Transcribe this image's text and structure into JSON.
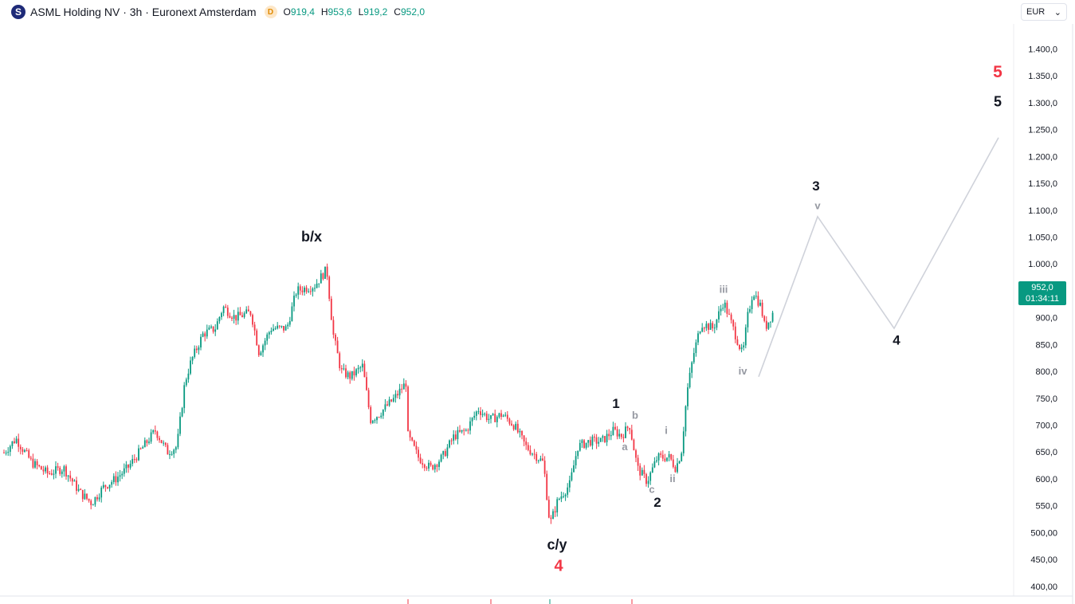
{
  "header": {
    "logo_letter": "S",
    "title": "ASML Holding NV · 3h · Euronext Amsterdam",
    "badge": "D",
    "ohlc": [
      {
        "k": "O",
        "v": "919,4"
      },
      {
        "k": "H",
        "v": "953,6"
      },
      {
        "k": "L",
        "v": "919,2"
      },
      {
        "k": "C",
        "v": "952,0"
      }
    ]
  },
  "currency": {
    "value": "EUR",
    "arrow": "⌄"
  },
  "colors": {
    "up": "#089981",
    "down": "#f23645",
    "path": "#cfd2da",
    "red_label": "#f23645"
  },
  "last_price": {
    "price": "952,0",
    "countdown": "01:34:11"
  },
  "chart_data": {
    "type": "candlestick",
    "y_range": [
      380,
      1420
    ],
    "y_ticks": [
      {
        "v": 1400,
        "label": "1.400,0"
      },
      {
        "v": 1350,
        "label": "1.350,0"
      },
      {
        "v": 1300,
        "label": "1.300,0"
      },
      {
        "v": 1250,
        "label": "1.250,0"
      },
      {
        "v": 1200,
        "label": "1.200,0"
      },
      {
        "v": 1150,
        "label": "1.150,0"
      },
      {
        "v": 1100,
        "label": "1.100,0"
      },
      {
        "v": 1050,
        "label": "1.050,0"
      },
      {
        "v": 1000,
        "label": "1.000,0"
      },
      {
        "v": 900,
        "label": "900,0"
      },
      {
        "v": 850,
        "label": "850,0"
      },
      {
        "v": 800,
        "label": "800,0"
      },
      {
        "v": 750,
        "label": "750,0"
      },
      {
        "v": 700,
        "label": "700,0"
      },
      {
        "v": 650,
        "label": "650,0"
      },
      {
        "v": 600,
        "label": "600,0"
      },
      {
        "v": 550,
        "label": "550,0"
      },
      {
        "v": 500,
        "label": "500,00"
      },
      {
        "v": 450,
        "label": "450,00"
      },
      {
        "v": 400,
        "label": "400,00"
      }
    ],
    "price_path": [
      [
        0,
        640
      ],
      [
        20,
        675
      ],
      [
        40,
        630
      ],
      [
        60,
        610
      ],
      [
        80,
        620
      ],
      [
        100,
        575
      ],
      [
        115,
        555
      ],
      [
        130,
        585
      ],
      [
        145,
        600
      ],
      [
        160,
        620
      ],
      [
        175,
        650
      ],
      [
        195,
        690
      ],
      [
        210,
        650
      ],
      [
        222,
        660
      ],
      [
        232,
        780
      ],
      [
        240,
        820
      ],
      [
        255,
        870
      ],
      [
        270,
        880
      ],
      [
        280,
        920
      ],
      [
        295,
        900
      ],
      [
        315,
        910
      ],
      [
        325,
        835
      ],
      [
        340,
        880
      ],
      [
        360,
        880
      ],
      [
        372,
        950
      ],
      [
        395,
        960
      ],
      [
        410,
        990
      ],
      [
        418,
        870
      ],
      [
        428,
        800
      ],
      [
        440,
        790
      ],
      [
        455,
        810
      ],
      [
        465,
        710
      ],
      [
        475,
        720
      ],
      [
        495,
        750
      ],
      [
        510,
        780
      ],
      [
        512,
        680
      ],
      [
        525,
        640
      ],
      [
        540,
        620
      ],
      [
        555,
        640
      ],
      [
        570,
        680
      ],
      [
        585,
        690
      ],
      [
        600,
        730
      ],
      [
        615,
        710
      ],
      [
        630,
        720
      ],
      [
        645,
        700
      ],
      [
        660,
        660
      ],
      [
        675,
        640
      ],
      [
        682,
        630
      ],
      [
        690,
        515
      ],
      [
        700,
        560
      ],
      [
        715,
        590
      ],
      [
        725,
        660
      ],
      [
        740,
        670
      ],
      [
        755,
        670
      ],
      [
        770,
        690
      ],
      [
        780,
        680
      ],
      [
        790,
        700
      ],
      [
        795,
        660
      ],
      [
        800,
        620
      ],
      [
        812,
        595
      ],
      [
        825,
        640
      ],
      [
        840,
        640
      ],
      [
        848,
        620
      ],
      [
        855,
        650
      ],
      [
        862,
        760
      ],
      [
        870,
        830
      ],
      [
        880,
        890
      ],
      [
        895,
        880
      ],
      [
        908,
        930
      ],
      [
        920,
        880
      ],
      [
        932,
        830
      ],
      [
        938,
        900
      ],
      [
        945,
        950
      ],
      [
        955,
        920
      ],
      [
        960,
        880
      ],
      [
        970,
        910
      ]
    ],
    "projection": [
      [
        952,
        780
      ],
      [
        1026,
        880
      ],
      [
        1122,
        886
      ],
      [
        1253,
        1235
      ]
    ],
    "projection_pts": [
      [
        952,
        790
      ],
      [
        1026,
        1088
      ],
      [
        1122,
        880
      ],
      [
        1253,
        1235
      ]
    ],
    "wave_labels": [
      {
        "t": "b/x",
        "x": 391,
        "v": 1042,
        "color": "#131722",
        "size": 18
      },
      {
        "t": "c/y",
        "x": 699,
        "v": 469,
        "color": "#131722",
        "size": 18
      },
      {
        "t": "4",
        "x": 701,
        "v": 429,
        "color": "#f23645",
        "size": 20
      },
      {
        "t": "1",
        "x": 773,
        "v": 732,
        "color": "#131722",
        "size": 17
      },
      {
        "t": "b",
        "x": 797,
        "v": 712,
        "color": "#9598a1",
        "size": 13
      },
      {
        "t": "a",
        "x": 784,
        "v": 653,
        "color": "#9598a1",
        "size": 13
      },
      {
        "t": "c",
        "x": 818,
        "v": 574,
        "color": "#9598a1",
        "size": 13
      },
      {
        "t": "2",
        "x": 825,
        "v": 548,
        "color": "#131722",
        "size": 17
      },
      {
        "t": "i",
        "x": 836,
        "v": 684,
        "color": "#9598a1",
        "size": 13
      },
      {
        "t": "ii",
        "x": 844,
        "v": 594,
        "color": "#9598a1",
        "size": 13
      },
      {
        "t": "iii",
        "x": 908,
        "v": 946,
        "color": "#9598a1",
        "size": 13
      },
      {
        "t": "iv",
        "x": 932,
        "v": 794,
        "color": "#9598a1",
        "size": 13
      },
      {
        "t": "3",
        "x": 1024,
        "v": 1137,
        "color": "#131722",
        "size": 17
      },
      {
        "t": "v",
        "x": 1026,
        "v": 1102,
        "color": "#9598a1",
        "size": 13
      },
      {
        "t": "4",
        "x": 1125,
        "v": 850,
        "color": "#131722",
        "size": 17
      },
      {
        "t": "5",
        "x": 1252,
        "v": 1293,
        "color": "#131722",
        "size": 18
      },
      {
        "t": "5",
        "x": 1252,
        "v": 1347,
        "color": "#f23645",
        "size": 21
      }
    ]
  }
}
